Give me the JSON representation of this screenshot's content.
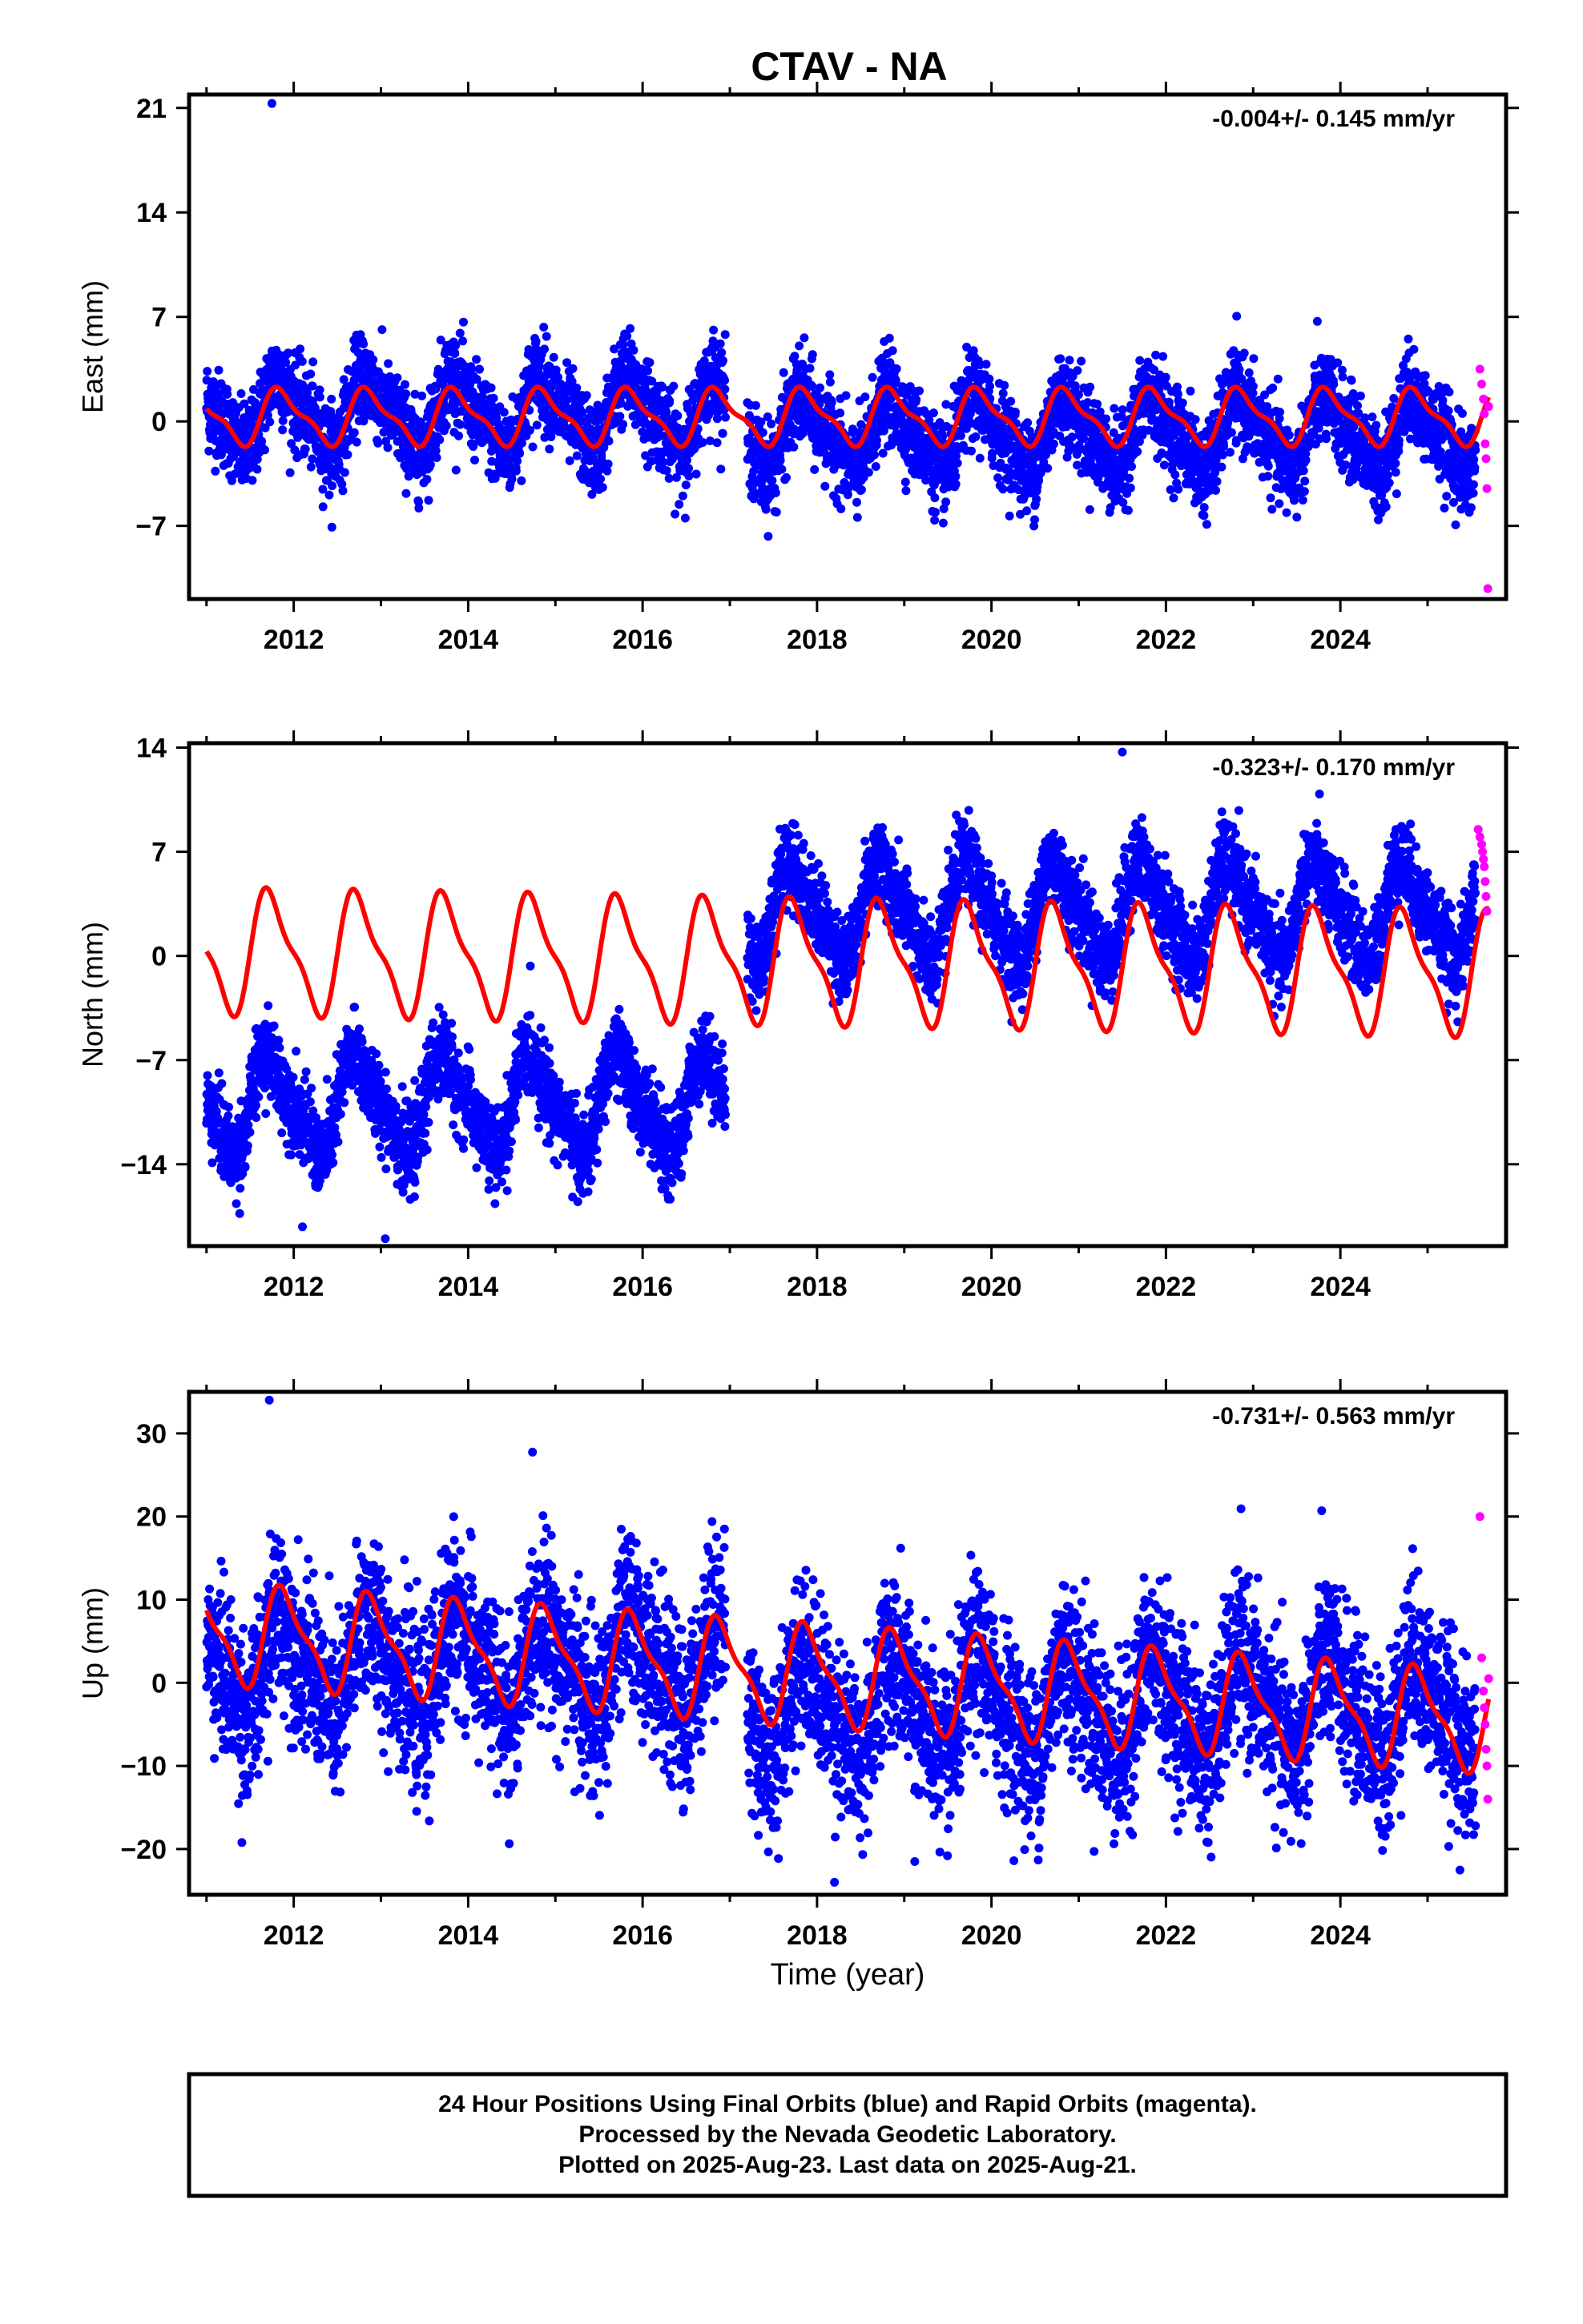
{
  "title": "CTAV - NA",
  "colors": {
    "final": "#0000ff",
    "rapid": "#ff00ff",
    "model": "#ff0000",
    "axis": "#000000"
  },
  "caption": {
    "line1": "24 Hour Positions Using Final Orbits (blue) and Rapid Orbits (magenta).",
    "line2": "Processed by the Nevada Geodetic Laboratory.",
    "line3": "Plotted on 2025-Aug-23. Last data on 2025-Aug-21."
  },
  "chart_data": [
    {
      "type": "scatter",
      "name": "east",
      "ylabel": "East (mm)",
      "xlabel": "",
      "rate": "-0.004+/- 0.145 mm/yr",
      "xlim": [
        2010.8,
        2025.9
      ],
      "ylim": [
        -11.9,
        21.9
      ],
      "yticks": [
        -7,
        0,
        7,
        14,
        21
      ],
      "ytick_labels": [
        "−7",
        "0",
        "7",
        "14",
        "21"
      ],
      "xticks": [
        2012,
        2014,
        2016,
        2018,
        2020,
        2022,
        2024
      ],
      "final_orbits": {
        "start": 2011.0,
        "end": 2025.55,
        "gaps": [
          [
            2016.95,
            2017.2
          ]
        ],
        "noise": 1.5,
        "seasonal_amp": 2.2,
        "pre_offset_mean": 0.5,
        "post_offset_mean": -0.8,
        "offset_epoch": 2017.2
      },
      "rapid_orbits": {
        "x": [
          2025.6,
          2025.62,
          2025.64,
          2025.65,
          2025.66,
          2025.67,
          2025.68,
          2025.69,
          2025.7
        ],
        "y": [
          3.5,
          2.5,
          1.5,
          0.5,
          -1.5,
          -2.5,
          -4.5,
          -11.2,
          1.0
        ]
      },
      "model_curve": {
        "start": 2011.0,
        "end": 2025.7,
        "trend": 0,
        "offset": 0.3,
        "amp_annual": 1.7,
        "amp_semi": 0.6,
        "phase_annual": 0.62
      },
      "outliers": {
        "x": [
          2011.75
        ],
        "y": [
          21.3
        ]
      }
    },
    {
      "type": "scatter",
      "name": "north",
      "ylabel": "North (mm)",
      "xlabel": "",
      "rate": "-0.323+/- 0.170 mm/yr",
      "xlim": [
        2010.8,
        2025.9
      ],
      "ylim": [
        -19.5,
        14.3
      ],
      "yticks": [
        -14,
        -7,
        0,
        7,
        14
      ],
      "ytick_labels": [
        "−14",
        "−7",
        "0",
        "7",
        "14"
      ],
      "xticks": [
        2012,
        2014,
        2016,
        2018,
        2020,
        2022,
        2024
      ],
      "final_orbits": {
        "start": 2011.0,
        "end": 2025.55,
        "gaps": [
          [
            2016.95,
            2017.2
          ]
        ],
        "noise": 1.4,
        "seasonal_amp": 3.0,
        "pre_offset_mean": -10.0,
        "post_offset_mean": 3.0,
        "offset_epoch": 2017.2
      },
      "rapid_orbits": {
        "x": [
          2025.58,
          2025.6,
          2025.62,
          2025.63,
          2025.64,
          2025.65,
          2025.66,
          2025.67,
          2025.68
        ],
        "y": [
          8.5,
          8.0,
          7.5,
          7.0,
          6.5,
          6.0,
          5.0,
          4.0,
          3.0
        ]
      },
      "model_curve": {
        "start": 2011.0,
        "end": 2025.7,
        "trend": -0.1,
        "offset": 0.3,
        "amp_annual": 3.8,
        "amp_semi": 1.2,
        "phase_annual": 0.5
      },
      "outliers": {
        "x": [
          2012.1,
          2013.05,
          2021.5
        ],
        "y": [
          -18.2,
          -19.0,
          13.7
        ]
      }
    },
    {
      "type": "scatter",
      "name": "up",
      "ylabel": "Up (mm)",
      "xlabel": "Time (year)",
      "rate": "-0.731+/- 0.563 mm/yr",
      "xlim": [
        2010.8,
        2025.9
      ],
      "ylim": [
        -25.5,
        35.0
      ],
      "yticks": [
        -20,
        -10,
        0,
        10,
        20,
        30
      ],
      "ytick_labels": [
        "−20",
        "−10",
        "0",
        "10",
        "20",
        "30"
      ],
      "xticks": [
        2012,
        2014,
        2016,
        2018,
        2020,
        2022,
        2024
      ],
      "final_orbits": {
        "start": 2011.0,
        "end": 2025.55,
        "gaps": [
          [
            2016.95,
            2017.2
          ]
        ],
        "noise": 5.0,
        "seasonal_amp": 5.5,
        "pre_offset_mean": 2.0,
        "post_offset_mean": -3.0,
        "offset_epoch": 2017.2
      },
      "rapid_orbits": {
        "x": [
          2025.6,
          2025.62,
          2025.64,
          2025.65,
          2025.66,
          2025.67,
          2025.68,
          2025.69,
          2025.7
        ],
        "y": [
          20.0,
          3.0,
          -1.0,
          -3.0,
          -5.0,
          -8.0,
          -10.0,
          -14.0,
          0.5
        ]
      },
      "model_curve": {
        "start": 2011.0,
        "end": 2025.7,
        "trend": -0.73,
        "offset": 6.0,
        "amp_annual": 5.5,
        "amp_semi": 1.8,
        "phase_annual": 0.65
      },
      "outliers": {
        "x": [
          2011.72,
          2018.2,
          2019.12
        ],
        "y": [
          34.0,
          -24.0,
          -21.5
        ]
      }
    }
  ]
}
